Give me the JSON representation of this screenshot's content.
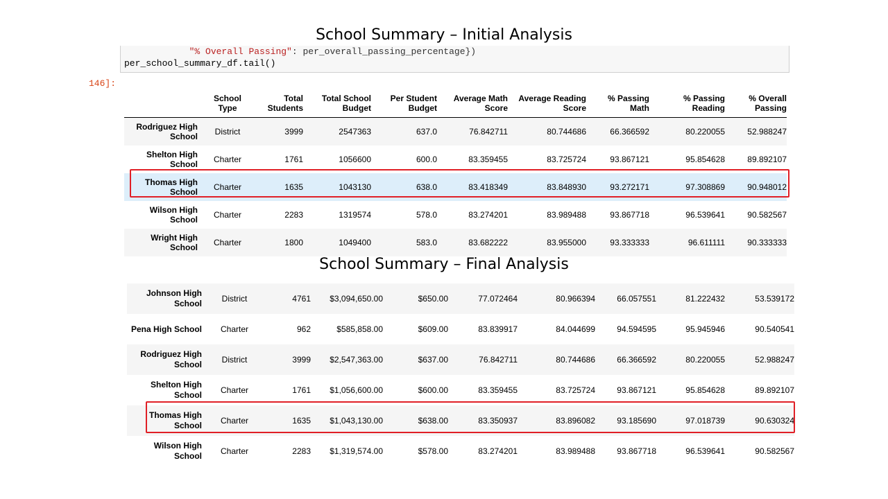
{
  "title_initial": "School Summary – Initial Analysis",
  "title_final": "School Summary – Final Analysis",
  "code": {
    "line1_prefix": "            ",
    "line1_string": "\"% Overall Passing\"",
    "line1_suffix": ": per_overall_passing_percentage})",
    "line2": "per_school_summary_df.tail()"
  },
  "prompt": "146]:",
  "initial_table": {
    "headers": [
      "",
      "School Type",
      "Total Students",
      "Total School Budget",
      "Per Student Budget",
      "Average Math Score",
      "Average Reading Score",
      "% Passing Math",
      "% Passing Reading",
      "% Overall Passing"
    ],
    "rows": [
      {
        "name": "Rodriguez High School",
        "type": "District",
        "students": "3999",
        "budget": "2547363",
        "per_student": "637.0",
        "math": "76.842711",
        "reading": "80.744686",
        "pass_math": "66.366592",
        "pass_reading": "80.220055",
        "overall": "52.988247"
      },
      {
        "name": "Shelton High School",
        "type": "Charter",
        "students": "1761",
        "budget": "1056600",
        "per_student": "600.0",
        "math": "83.359455",
        "reading": "83.725724",
        "pass_math": "93.867121",
        "pass_reading": "95.854628",
        "overall": "89.892107"
      },
      {
        "name": "Thomas High School",
        "type": "Charter",
        "students": "1635",
        "budget": "1043130",
        "per_student": "638.0",
        "math": "83.418349",
        "reading": "83.848930",
        "pass_math": "93.272171",
        "pass_reading": "97.308869",
        "overall": "90.948012"
      },
      {
        "name": "Wilson High School",
        "type": "Charter",
        "students": "2283",
        "budget": "1319574",
        "per_student": "578.0",
        "math": "83.274201",
        "reading": "83.989488",
        "pass_math": "93.867718",
        "pass_reading": "96.539641",
        "overall": "90.582567"
      },
      {
        "name": "Wright High School",
        "type": "Charter",
        "students": "1800",
        "budget": "1049400",
        "per_student": "583.0",
        "math": "83.682222",
        "reading": "83.955000",
        "pass_math": "93.333333",
        "pass_reading": "96.611111",
        "overall": "90.333333"
      }
    ]
  },
  "final_table": {
    "rows": [
      {
        "name": "Johnson High School",
        "type": "District",
        "students": "4761",
        "budget": "$3,094,650.00",
        "per_student": "$650.00",
        "math": "77.072464",
        "reading": "80.966394",
        "pass_math": "66.057551",
        "pass_reading": "81.222432",
        "overall": "53.539172"
      },
      {
        "name": "Pena High School",
        "type": "Charter",
        "students": "962",
        "budget": "$585,858.00",
        "per_student": "$609.00",
        "math": "83.839917",
        "reading": "84.044699",
        "pass_math": "94.594595",
        "pass_reading": "95.945946",
        "overall": "90.540541"
      },
      {
        "name": "Rodriguez High School",
        "type": "District",
        "students": "3999",
        "budget": "$2,547,363.00",
        "per_student": "$637.00",
        "math": "76.842711",
        "reading": "80.744686",
        "pass_math": "66.366592",
        "pass_reading": "80.220055",
        "overall": "52.988247"
      },
      {
        "name": "Shelton High School",
        "type": "Charter",
        "students": "1761",
        "budget": "$1,056,600.00",
        "per_student": "$600.00",
        "math": "83.359455",
        "reading": "83.725724",
        "pass_math": "93.867121",
        "pass_reading": "95.854628",
        "overall": "89.892107"
      },
      {
        "name": "Thomas High School",
        "type": "Charter",
        "students": "1635",
        "budget": "$1,043,130.00",
        "per_student": "$638.00",
        "math": "83.350937",
        "reading": "83.896082",
        "pass_math": "93.185690",
        "pass_reading": "97.018739",
        "overall": "90.630324"
      },
      {
        "name": "Wilson High School",
        "type": "Charter",
        "students": "2283",
        "budget": "$1,319,574.00",
        "per_student": "$578.00",
        "math": "83.274201",
        "reading": "83.989488",
        "pass_math": "93.867718",
        "pass_reading": "96.539641",
        "overall": "90.582567"
      }
    ]
  },
  "colors": {
    "highlight_box": "#e01f26",
    "highlight_row": "#ddeefa",
    "prompt": "#d84315"
  }
}
